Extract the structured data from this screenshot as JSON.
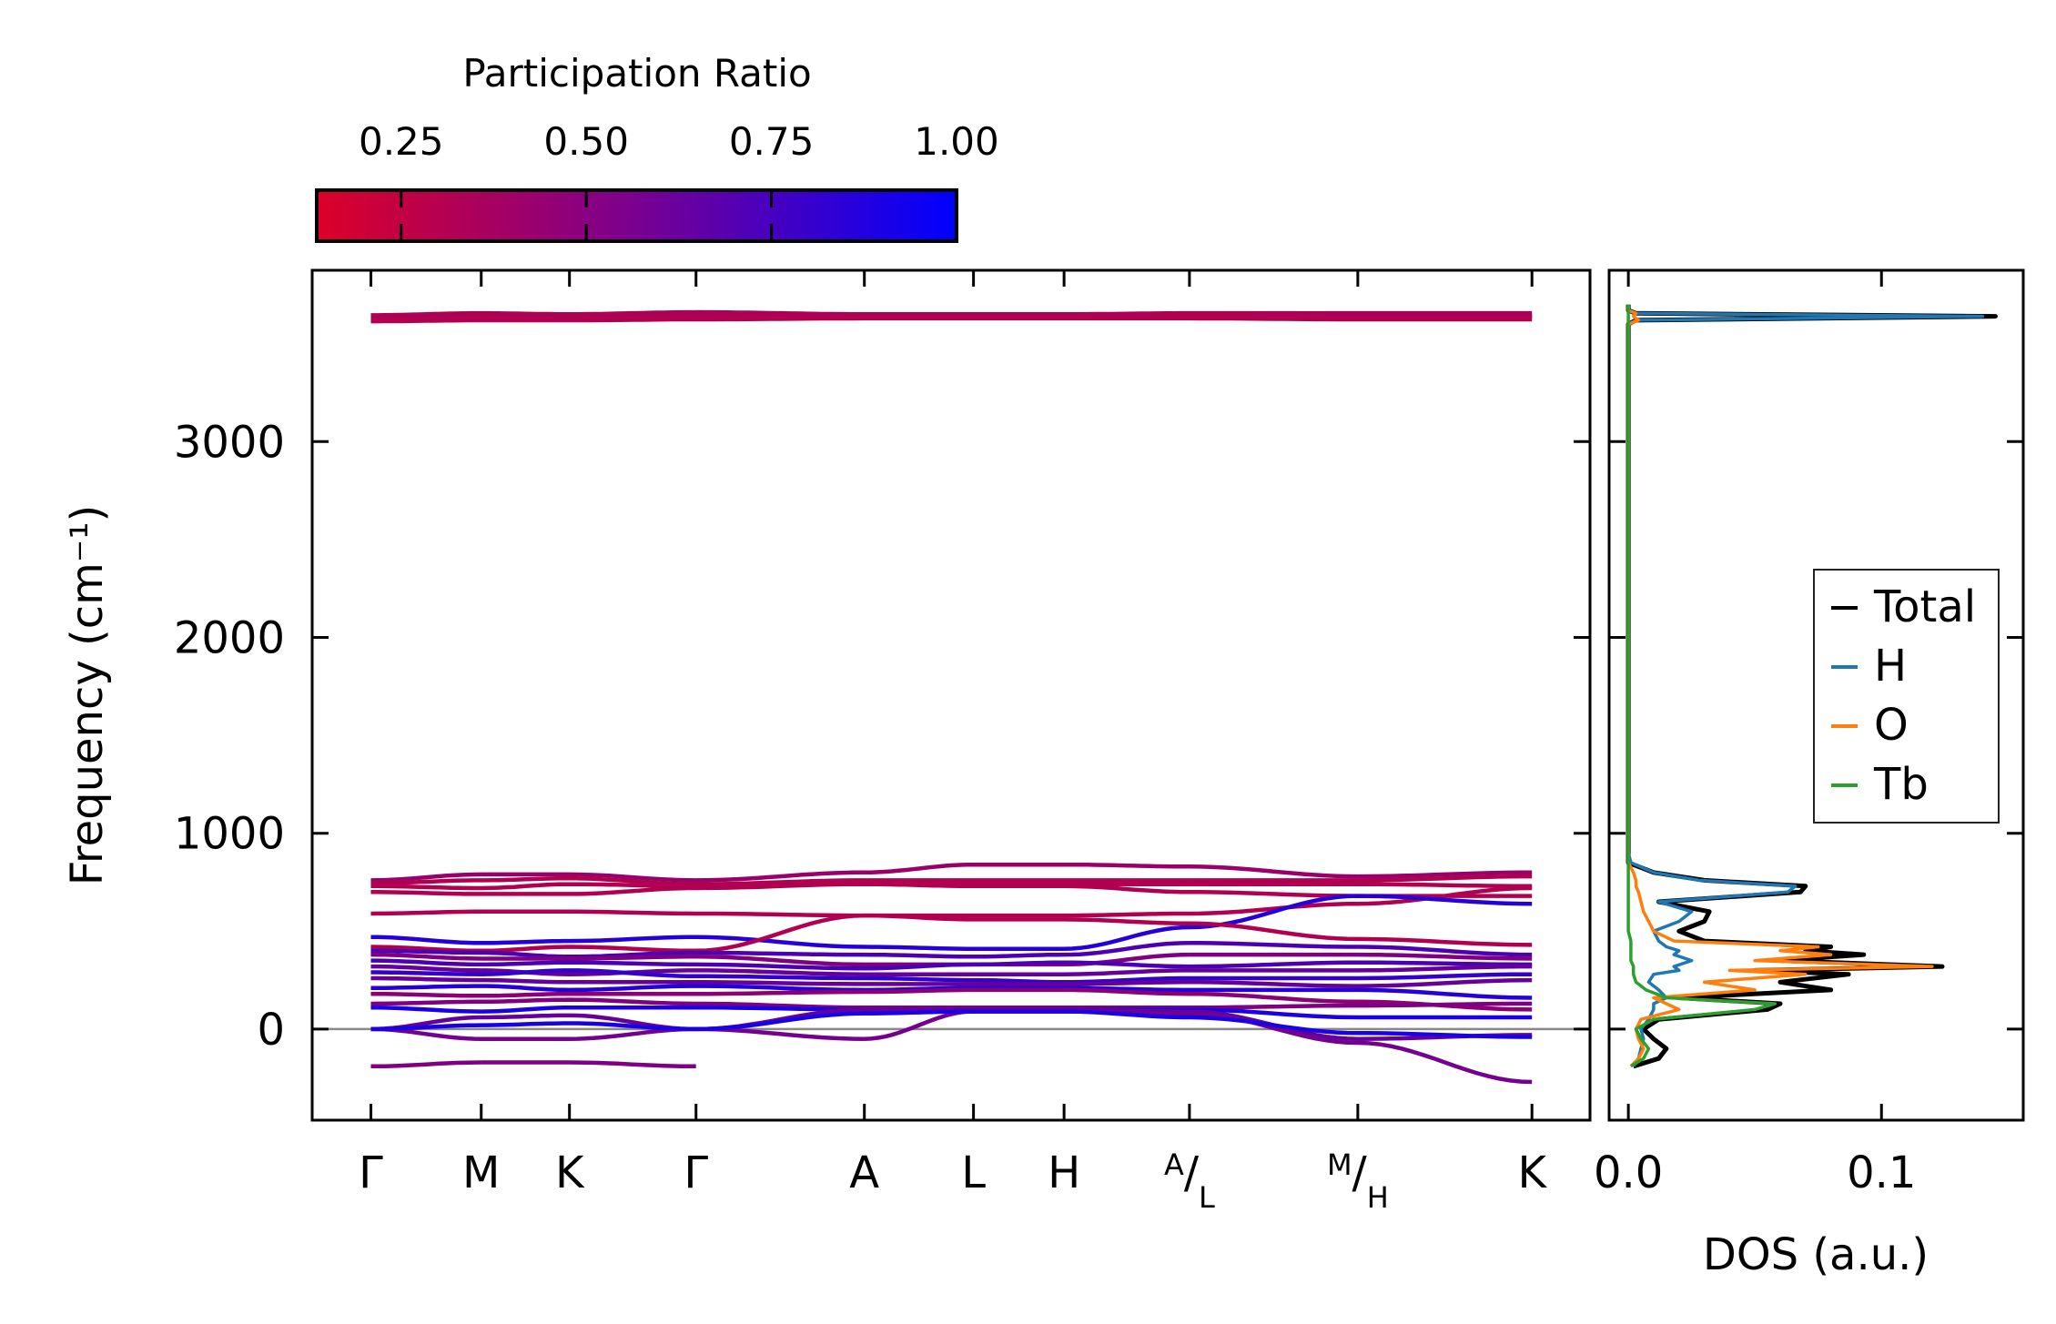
{
  "chart_data": [
    {
      "type": "line",
      "title": "",
      "xlabel": "",
      "ylabel": "Frequency (cm⁻¹)",
      "ylim": [
        -465,
        3875
      ],
      "xlim": [
        -0.0506,
        1.05
      ],
      "yticks": [
        0,
        1000,
        2000,
        3000
      ],
      "ytick_labels": [
        "0",
        "1000",
        "2000",
        "3000"
      ],
      "zero_line": 0,
      "x_ticks": [
        {
          "pos": 0.0,
          "label": "Γ"
        },
        {
          "pos": 0.095,
          "label": "M"
        },
        {
          "pos": 0.171,
          "label": "K"
        },
        {
          "pos": 0.28,
          "label": "Γ"
        },
        {
          "pos": 0.425,
          "label": "A"
        },
        {
          "pos": 0.519,
          "label": "L"
        },
        {
          "pos": 0.597,
          "label": "H"
        },
        {
          "pos": 0.705,
          "label": "A/L",
          "sup": "A",
          "sub": "L"
        },
        {
          "pos": 0.85,
          "label": "M/H",
          "sup": "M",
          "sub": "H"
        },
        {
          "pos": 1.0,
          "label": "K"
        }
      ],
      "colorbar": {
        "title": "Participation Ratio",
        "range": [
          0.136,
          1.0
        ],
        "ticks": [
          0.25,
          0.5,
          0.75,
          1.0
        ],
        "tick_labels": [
          "0.25",
          "0.50",
          "0.75",
          "1.00"
        ],
        "color_low": "#dc0028",
        "color_high": "#0000ff"
      },
      "bands": [
        {
          "pr": 0.3,
          "values": [
            3640,
            3650,
            3645,
            3655,
            3645,
            3645,
            3645,
            3650,
            3650,
            3650
          ]
        },
        {
          "pr": 0.35,
          "values": [
            3630,
            3635,
            3630,
            3640,
            3640,
            3640,
            3640,
            3640,
            3640,
            3640
          ]
        },
        {
          "pr": 0.3,
          "values": [
            3620,
            3625,
            3625,
            3630,
            3635,
            3635,
            3635,
            3635,
            3630,
            3630
          ]
        },
        {
          "pr": 0.4,
          "values": [
            760,
            790,
            790,
            760,
            800,
            840,
            840,
            830,
            780,
            800
          ]
        },
        {
          "pr": 0.3,
          "values": [
            745,
            760,
            770,
            740,
            760,
            760,
            760,
            760,
            760,
            780
          ]
        },
        {
          "pr": 0.3,
          "values": [
            730,
            720,
            740,
            730,
            750,
            740,
            740,
            740,
            740,
            730
          ]
        },
        {
          "pr": 0.3,
          "values": [
            700,
            690,
            690,
            720,
            740,
            730,
            730,
            700,
            680,
            680
          ]
        },
        {
          "pr": 0.3,
          "values": [
            590,
            600,
            600,
            590,
            580,
            580,
            580,
            590,
            640,
            720
          ]
        },
        {
          "pr": 0.85,
          "values": [
            470,
            440,
            450,
            470,
            420,
            410,
            410,
            520,
            680,
            640
          ]
        },
        {
          "pr": 0.3,
          "values": [
            420,
            400,
            420,
            400,
            580,
            560,
            560,
            540,
            460,
            430
          ]
        },
        {
          "pr": 0.7,
          "values": [
            400,
            390,
            370,
            390,
            380,
            370,
            380,
            440,
            420,
            380
          ]
        },
        {
          "pr": 0.5,
          "values": [
            380,
            360,
            360,
            370,
            330,
            330,
            330,
            380,
            380,
            360
          ]
        },
        {
          "pr": 0.7,
          "values": [
            350,
            330,
            340,
            330,
            310,
            330,
            340,
            320,
            340,
            330
          ]
        },
        {
          "pr": 0.6,
          "values": [
            320,
            300,
            280,
            300,
            280,
            280,
            280,
            300,
            300,
            320
          ]
        },
        {
          "pr": 0.8,
          "values": [
            290,
            280,
            300,
            270,
            260,
            250,
            240,
            260,
            260,
            280
          ]
        },
        {
          "pr": 0.6,
          "values": [
            260,
            250,
            240,
            240,
            230,
            230,
            230,
            240,
            220,
            250
          ]
        },
        {
          "pr": 0.85,
          "values": [
            210,
            220,
            200,
            220,
            200,
            210,
            210,
            200,
            200,
            160
          ]
        },
        {
          "pr": 0.45,
          "values": [
            180,
            170,
            180,
            180,
            190,
            200,
            200,
            180,
            140,
            100
          ]
        },
        {
          "pr": 0.5,
          "values": [
            130,
            140,
            150,
            130,
            110,
            110,
            110,
            110,
            120,
            130
          ]
        },
        {
          "pr": 0.9,
          "values": [
            110,
            90,
            110,
            110,
            100,
            100,
            100,
            100,
            60,
            60
          ]
        },
        {
          "pr": 0.6,
          "values": [
            0,
            60,
            70,
            0,
            100,
            100,
            100,
            90,
            -50,
            -30
          ]
        },
        {
          "pr": 0.55,
          "values": [
            0,
            -50,
            -50,
            0,
            -50,
            90,
            90,
            80,
            -70,
            -270
          ]
        },
        {
          "pr": 0.9,
          "values": [
            0,
            20,
            30,
            0,
            80,
            90,
            90,
            60,
            -20,
            -40
          ]
        },
        {
          "pr": 0.5,
          "values": [
            -190,
            -170,
            -170,
            -190,
            null,
            null,
            null,
            null,
            null,
            null
          ]
        }
      ]
    },
    {
      "type": "line",
      "xlabel": "DOS (a.u.)",
      "ylabel": "",
      "xlim": [
        -0.0076,
        0.156
      ],
      "ylim": [
        -465,
        3875
      ],
      "xticks": [
        0.0,
        0.1
      ],
      "xtick_labels": [
        "0.0",
        "0.1"
      ],
      "legend": {
        "position": "center-right"
      },
      "freq": [
        -190,
        -150,
        -100,
        -50,
        0,
        50,
        100,
        130,
        160,
        200,
        240,
        280,
        300,
        320,
        350,
        380,
        400,
        420,
        450,
        500,
        550,
        600,
        650,
        700,
        730,
        760,
        800,
        850,
        900,
        3600,
        3620,
        3640,
        3655,
        3670,
        3700
      ],
      "series": [
        {
          "name": "Total",
          "color": "#000000",
          "values": [
            0.002,
            0.012,
            0.015,
            0.01,
            0.006,
            0.012,
            0.055,
            0.06,
            0.02,
            0.08,
            0.06,
            0.087,
            0.05,
            0.124,
            0.06,
            0.093,
            0.07,
            0.08,
            0.03,
            0.02,
            0.03,
            0.032,
            0.012,
            0.068,
            0.07,
            0.03,
            0.01,
            0,
            0,
            0,
            0.003,
            0.145,
            0.003,
            0,
            0
          ]
        },
        {
          "name": "H",
          "color": "#1f77b4",
          "values": [
            0.002,
            0.004,
            0.005,
            0.006,
            0.005,
            0.008,
            0.01,
            0.01,
            0.015,
            0.012,
            0.008,
            0.01,
            0.02,
            0.018,
            0.025,
            0.018,
            0.02,
            0.015,
            0.012,
            0.01,
            0.02,
            0.025,
            0.012,
            0.063,
            0.066,
            0.028,
            0.01,
            0.001,
            0,
            0,
            0.003,
            0.14,
            0.003,
            0,
            0
          ]
        },
        {
          "name": "O",
          "color": "#ff7f0e",
          "values": [
            0.001,
            0.004,
            0.006,
            0.004,
            0.003,
            0.005,
            0.02,
            0.015,
            0.01,
            0.05,
            0.03,
            0.07,
            0.04,
            0.12,
            0.05,
            0.08,
            0.06,
            0.075,
            0.018,
            0.01,
            0.008,
            0.006,
            0.005,
            0.004,
            0.003,
            0.003,
            0.002,
            0,
            0,
            0,
            0.004,
            0.002,
            0.003,
            0,
            0
          ]
        },
        {
          "name": "Tb",
          "color": "#2ca02c",
          "values": [
            0.001,
            0.006,
            0.008,
            0.005,
            0.003,
            0.01,
            0.05,
            0.058,
            0.015,
            0.007,
            0.003,
            0.002,
            0.002,
            0.002,
            0.001,
            0.001,
            0.001,
            0.001,
            0.001,
            0,
            0,
            0,
            0,
            0,
            0,
            0,
            0,
            0,
            0,
            0,
            0,
            0,
            0,
            0,
            0
          ]
        }
      ]
    }
  ]
}
